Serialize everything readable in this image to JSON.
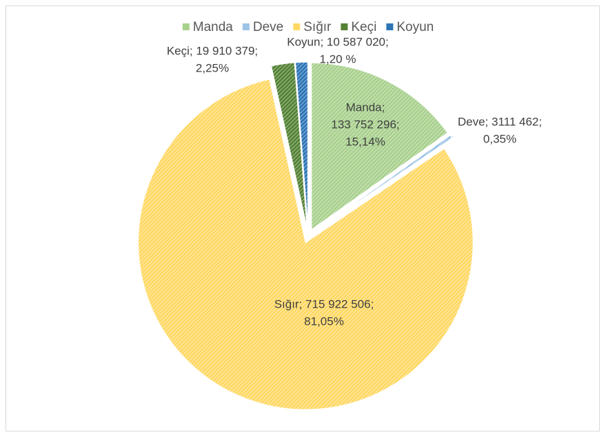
{
  "chart_data": {
    "type": "pie",
    "categories": [
      "Manda",
      "Deve",
      "Sığır",
      "Keçi",
      "Koyun"
    ],
    "values": [
      133752296,
      3111462,
      715922506,
      19910379,
      10587020
    ],
    "colors": [
      "#a9d18e",
      "#9dc3e6",
      "#ffd966",
      "#548235",
      "#2e75b6"
    ],
    "data_labels": [
      [
        "Manda;",
        "133 752 296;",
        "15,14%"
      ],
      [
        "Deve; 3111 462;",
        "0,35%"
      ],
      [
        "Sığır; 715 922 506;",
        "81,05%"
      ],
      [
        "Keçi; 19 910 379;",
        "2,25%"
      ],
      [
        "Koyun; 10 587 020;",
        "1,20 %"
      ]
    ],
    "legend": "top",
    "pattern": "hatched"
  }
}
